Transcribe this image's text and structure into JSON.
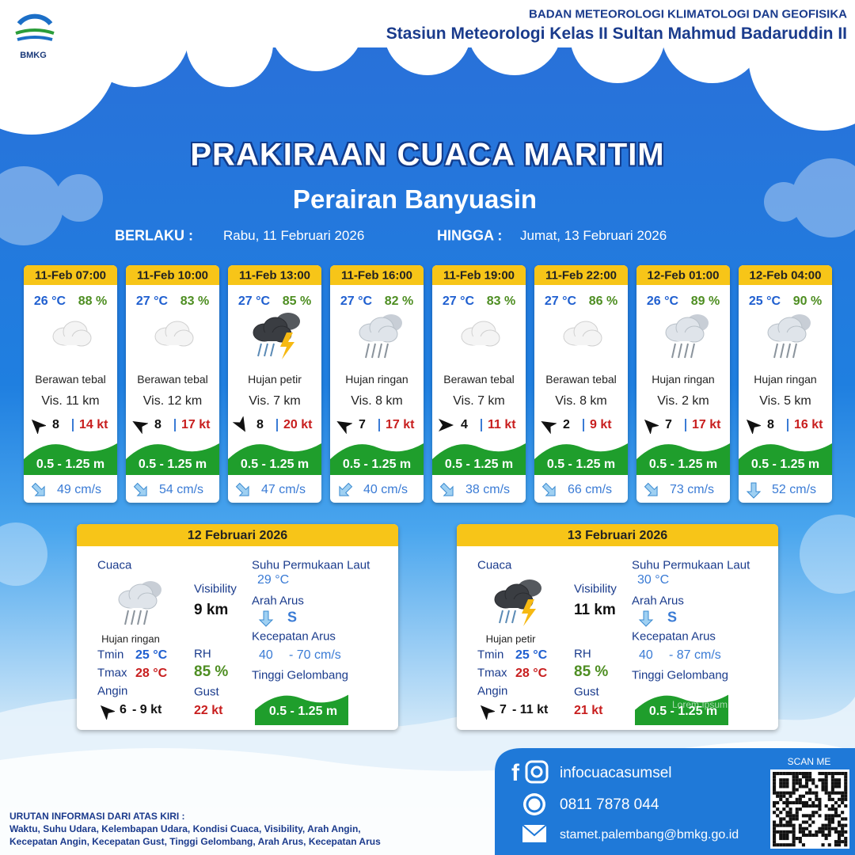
{
  "header": {
    "logo_text": "BMKG",
    "agency": "BADAN METEOROLOGI KLIMATOLOGI DAN GEOFISIKA",
    "station": "Stasiun Meteorologi Kelas II Sultan Mahmud Badaruddin II"
  },
  "title": "PRAKIRAAN CUACA MARITIM",
  "subtitle": "Perairan Banyuasin",
  "validity": {
    "from_label": "BERLAKU :",
    "from": "Rabu, 11 Februari 2026",
    "to_label": "HINGGA :",
    "to": "Jumat, 13 Februari 2026"
  },
  "forecasts": [
    {
      "time": "11-Feb 07:00",
      "temp": "26 °C",
      "rh": "88 %",
      "condition": "Berawan tebal",
      "visibility": "Vis. 11 km",
      "wind": "8",
      "gust": "14 kt",
      "wave": "0.5 - 1.25 m",
      "current": "49 cm/s"
    },
    {
      "time": "11-Feb 10:00",
      "temp": "27 °C",
      "rh": "83 %",
      "condition": "Berawan tebal",
      "visibility": "Vis. 12 km",
      "wind": "8",
      "gust": "17 kt",
      "wave": "0.5 - 1.25 m",
      "current": "54 cm/s"
    },
    {
      "time": "11-Feb 13:00",
      "temp": "27 °C",
      "rh": "85 %",
      "condition": "Hujan petir",
      "visibility": "Vis. 7 km",
      "wind": "8",
      "gust": "20 kt",
      "wave": "0.5 - 1.25 m",
      "current": "47 cm/s"
    },
    {
      "time": "11-Feb 16:00",
      "temp": "27 °C",
      "rh": "82 %",
      "condition": "Hujan ringan",
      "visibility": "Vis.  8 km",
      "wind": "7",
      "gust": "17 kt",
      "wave": "0.5 - 1.25 m",
      "current": "40 cm/s"
    },
    {
      "time": "11-Feb 19:00",
      "temp": "27 °C",
      "rh": "83 %",
      "condition": "Berawan tebal",
      "visibility": "Vis.  7 km",
      "wind": "4",
      "gust": "11 kt",
      "wave": "0.5 - 1.25 m",
      "current": "38 cm/s"
    },
    {
      "time": "11-Feb 22:00",
      "temp": "27 °C",
      "rh": "86 %",
      "condition": "Berawan tebal",
      "visibility": "Vis.  8 km",
      "wind": "2",
      "gust": "9 kt",
      "wave": "0.5 - 1.25 m",
      "current": "66 cm/s"
    },
    {
      "time": "12-Feb 01:00",
      "temp": "26 °C",
      "rh": "89 %",
      "condition": "Hujan ringan",
      "visibility": "Vis.  2 km",
      "wind": "7",
      "gust": "17 kt",
      "wave": "0.5 - 1.25 m",
      "current": "73 cm/s"
    },
    {
      "time": "12-Feb 04:00",
      "temp": "25 °C",
      "rh": "90 %",
      "condition": "Hujan ringan",
      "visibility": "Vis.  5 km",
      "wind": "8",
      "gust": "16 kt",
      "wave": "0.5 - 1.25 m",
      "current": "52 cm/s"
    }
  ],
  "days": [
    {
      "date": "12 Februari 2026",
      "weather_label": "Cuaca",
      "condition": "Hujan ringan",
      "visibility_label": "Visibility",
      "visibility": "9 km",
      "sst_label": "Suhu Permukaan Laut",
      "sst": "29 °C",
      "current_dir_label": "Arah Arus",
      "current_dir": "S",
      "current_speed_label": "Kecepatan Arus",
      "current_min": "40",
      "current_max": "- 70 cm/s",
      "wave_label": "Tinggi Gelombang",
      "wave": "0.5 - 1.25 m",
      "tmin_label": "Tmin",
      "tmin": "25 °C",
      "tmax_label": "Tmax",
      "tmax": "28 °C",
      "rh_label": "RH",
      "rh": "85 %",
      "wind_label": "Angin",
      "wind_min": "6",
      "wind_max": "- 9 kt",
      "gust_label": "Gust",
      "gust": "22 kt"
    },
    {
      "date": "13 Februari 2026",
      "weather_label": "Cuaca",
      "condition": "Hujan petir",
      "visibility_label": "Visibility",
      "visibility": "11 km",
      "sst_label": "Suhu Permukaan Laut",
      "sst": "30 °C",
      "current_dir_label": "Arah Arus",
      "current_dir": "S",
      "current_speed_label": "Kecepatan Arus",
      "current_min": "40",
      "current_max": "- 87 cm/s",
      "wave_label": "Tinggi Gelombang",
      "wave": "0.5 - 1.25 m",
      "overlay": "Lorem Ipsum",
      "tmin_label": "Tmin",
      "tmin": "25 °C",
      "tmax_label": "Tmax",
      "tmax": "28 °C",
      "rh_label": "RH",
      "rh": "85 %",
      "wind_label": "Angin",
      "wind_min": "7",
      "wind_max": "- 11 kt",
      "gust_label": "Gust",
      "gust": "21 kt"
    }
  ],
  "notes": {
    "title": "URUTAN INFORMASI DARI ATAS KIRI :",
    "lines": [
      "Waktu, Suhu Udara, Kelembapan Udara, Kondisi Cuaca, Visibility, Arah Angin,",
      "Kecepatan Angin, Kecepatan Gust, Tinggi Gelombang, Arah Arus, Kecepatan Arus"
    ]
  },
  "contact": {
    "social": "infocuacasumsel",
    "phone": "0811 7878 044",
    "email": "stamet.palembang@bmkg.go.id",
    "scan": "SCAN ME"
  }
}
